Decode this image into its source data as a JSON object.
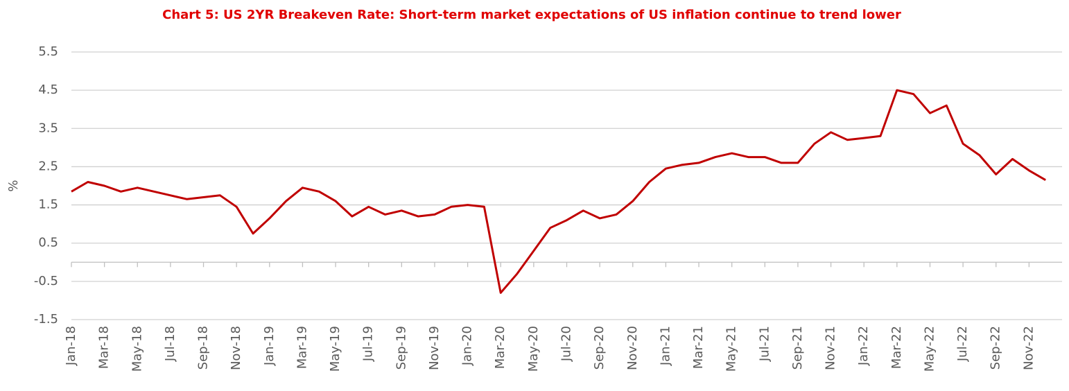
{
  "chart_data": {
    "type": "line",
    "title": "Chart 5: US 2YR Breakeven Rate: Short-term market expectations of US inflation continue to trend lower",
    "y_label": "%",
    "categories": [
      "Jan-18",
      null,
      "Mar-18",
      null,
      "May-18",
      null,
      "Jul-18",
      null,
      "Sep-18",
      null,
      "Nov-18",
      null,
      "Jan-19",
      null,
      "Mar-19",
      null,
      "May-19",
      null,
      "Jul-19",
      null,
      "Sep-19",
      null,
      "Nov-19",
      null,
      "Jan-20",
      null,
      "Mar-20",
      null,
      "May-20",
      null,
      "Jul-20",
      null,
      "Sep-20",
      null,
      "Nov-20",
      null,
      "Jan-21",
      null,
      "Mar-21",
      null,
      "May-21",
      null,
      "Jul-21",
      null,
      "Sep-21",
      null,
      "Nov-21",
      null,
      "Jan-22",
      null,
      "Mar-22",
      null,
      "May-22",
      null,
      "Jul-22",
      null,
      "Sep-22",
      null,
      "Nov-22",
      null
    ],
    "series": [
      {
        "name": "US 2YR Breakeven Rate",
        "color": "#c00000",
        "values": [
          1.85,
          2.1,
          2.0,
          1.85,
          1.95,
          1.85,
          1.75,
          1.65,
          1.7,
          1.75,
          1.45,
          0.75,
          1.15,
          1.6,
          1.95,
          1.85,
          1.6,
          1.2,
          1.45,
          1.25,
          1.35,
          1.2,
          1.25,
          1.45,
          1.5,
          1.45,
          -0.8,
          -0.3,
          0.3,
          0.9,
          1.1,
          1.35,
          1.15,
          1.25,
          1.6,
          2.1,
          2.45,
          2.55,
          2.6,
          2.75,
          2.85,
          2.75,
          2.75,
          2.6,
          2.6,
          3.1,
          3.4,
          3.2,
          3.25,
          3.3,
          4.5,
          4.4,
          3.9,
          4.1,
          3.1,
          2.8,
          2.3,
          2.7,
          2.4,
          2.15
        ]
      }
    ],
    "ylim": [
      -1.5,
      5.5
    ],
    "yticks": [
      -1.5,
      -0.5,
      0.5,
      1.5,
      2.5,
      3.5,
      4.5,
      5.5
    ],
    "grid": true
  }
}
